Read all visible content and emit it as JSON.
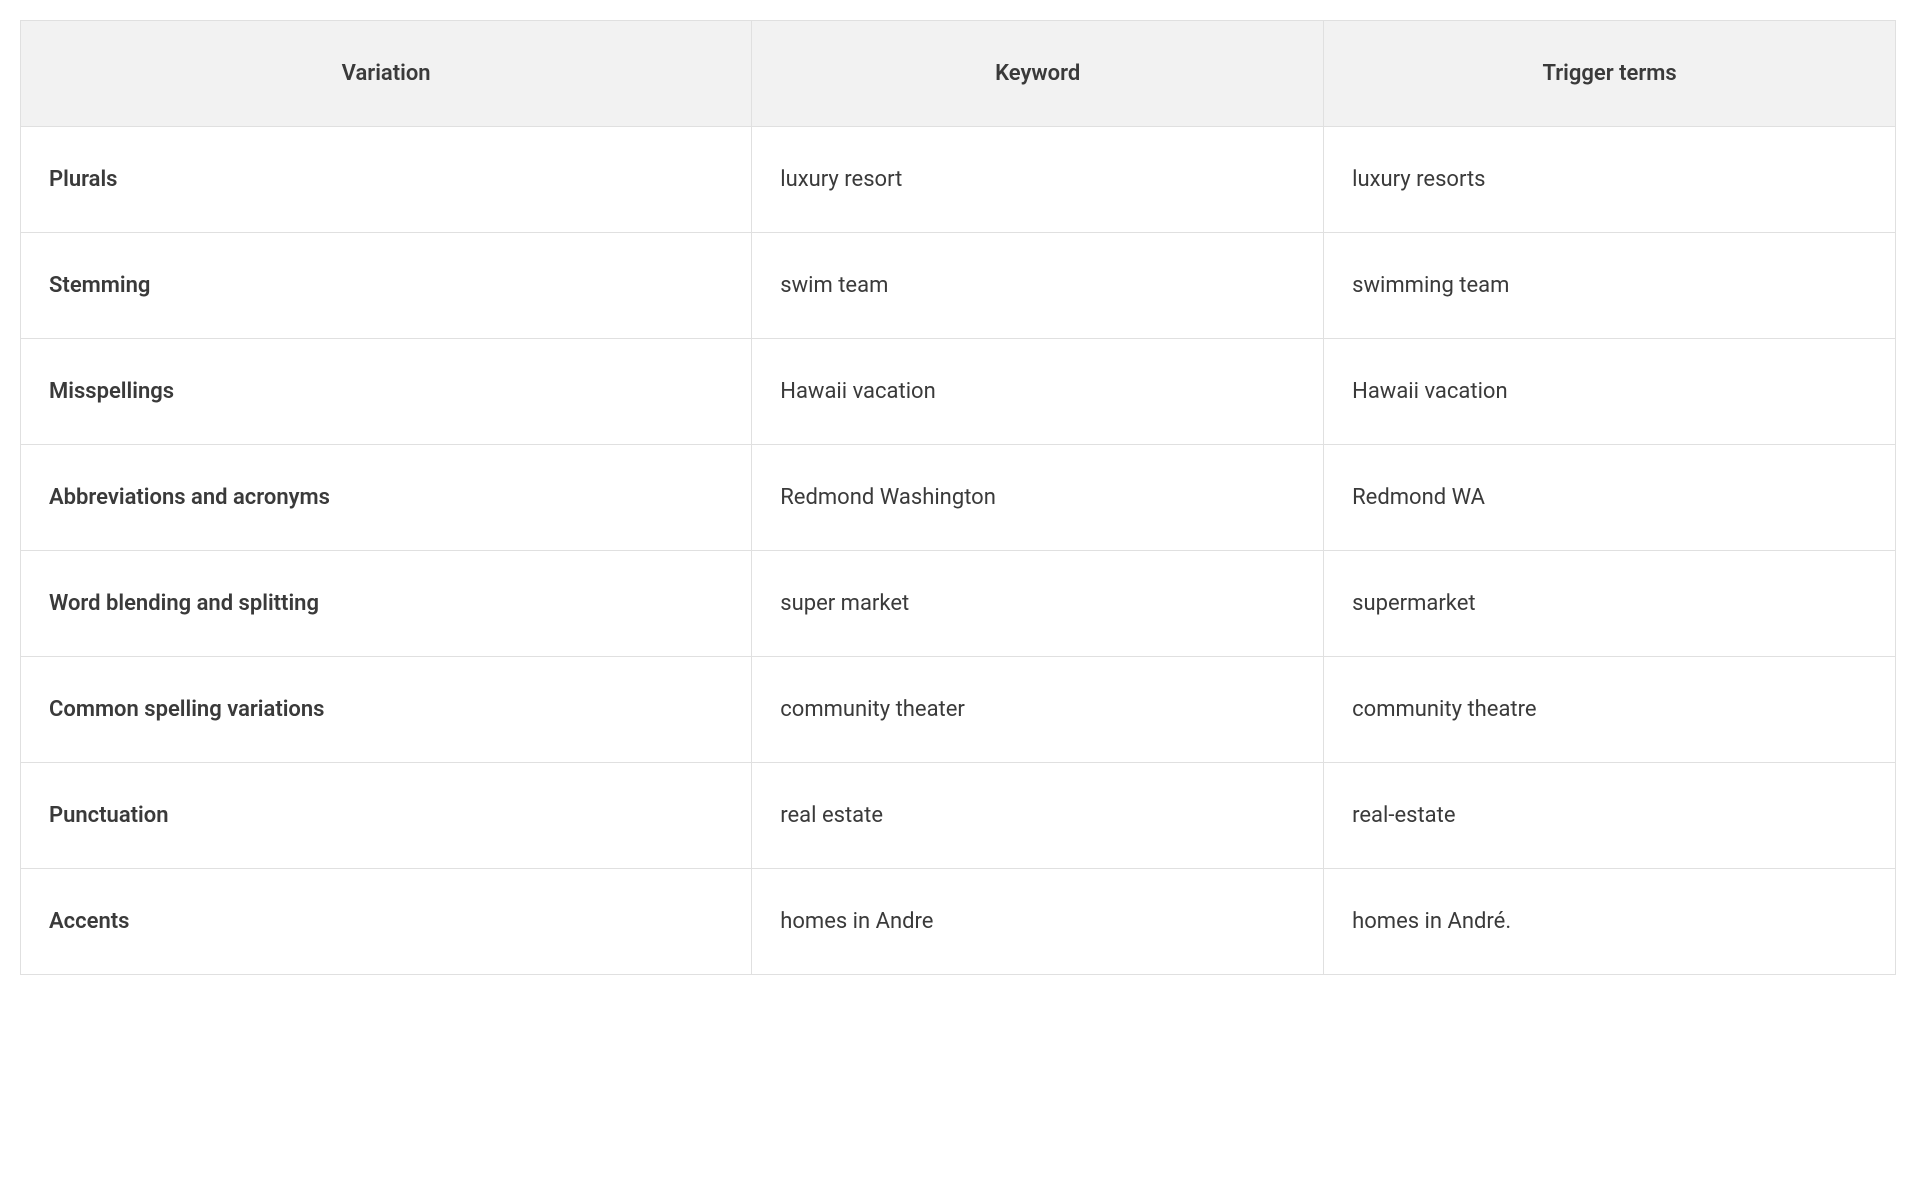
{
  "table": {
    "columns": [
      "Variation",
      "Keyword",
      "Trigger terms"
    ],
    "rows": [
      [
        "Plurals",
        "luxury resort",
        "luxury resorts"
      ],
      [
        "Stemming",
        "swim team",
        "swimming team"
      ],
      [
        "Misspellings",
        "Hawaii vacation",
        "Hawaii vacation"
      ],
      [
        "Abbreviations and acronyms",
        "Redmond Washington",
        "Redmond WA"
      ],
      [
        "Word blending and splitting",
        "super market",
        "supermarket"
      ],
      [
        "Common spelling variations",
        "community theater",
        "community theatre"
      ],
      [
        "Punctuation",
        "real estate",
        "real-estate"
      ],
      [
        "Accents",
        "homes in Andre",
        "homes in André."
      ]
    ],
    "header_bg": "#f2f2f2",
    "border_color": "#e0e0e0",
    "text_color": "#3a3a3a",
    "font_size": 22,
    "cell_padding_v": 40,
    "cell_padding_h": 28
  }
}
